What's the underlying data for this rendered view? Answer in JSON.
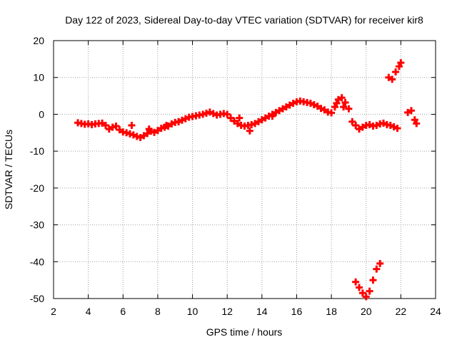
{
  "chart_data": {
    "type": "scatter",
    "title": "Day 122 of 2023, Sidereal Day-to-day VTEC variation (SDTVAR) for receiver kir8",
    "xlabel": "GPS time / hours",
    "ylabel": "SDTVAR / TECUs",
    "xlim": [
      2,
      24
    ],
    "ylim": [
      -50,
      20
    ],
    "xticks": [
      2,
      4,
      6,
      8,
      10,
      12,
      14,
      16,
      18,
      20,
      22,
      24
    ],
    "yticks": [
      -50,
      -40,
      -30,
      -20,
      -10,
      0,
      10,
      20
    ],
    "grid": true,
    "marker": "+",
    "series": [
      {
        "name": "SDTVAR",
        "color": "#ff0000",
        "x": [
          3.4,
          3.6,
          3.8,
          4.0,
          4.2,
          4.4,
          4.6,
          4.8,
          5.0,
          5.2,
          5.4,
          5.6,
          5.8,
          6.0,
          6.2,
          6.4,
          6.6,
          6.8,
          7.0,
          7.2,
          7.4,
          7.6,
          7.8,
          8.0,
          8.2,
          8.4,
          8.6,
          8.8,
          9.0,
          9.2,
          9.4,
          9.6,
          9.8,
          10.0,
          10.2,
          10.4,
          10.6,
          10.8,
          11.0,
          11.2,
          11.4,
          11.6,
          11.8,
          12.0,
          12.2,
          12.4,
          12.6,
          12.8,
          13.0,
          13.2,
          13.4,
          13.6,
          13.8,
          14.0,
          14.2,
          14.4,
          14.6,
          14.8,
          15.0,
          15.2,
          15.4,
          15.6,
          15.8,
          16.0,
          16.2,
          16.4,
          16.6,
          16.8,
          17.0,
          17.2,
          17.4,
          17.6,
          17.8,
          18.0,
          18.2,
          18.4,
          18.6,
          18.8,
          19.0,
          19.2,
          19.4,
          19.6,
          19.8,
          20.0,
          20.2,
          20.4,
          20.6,
          20.8,
          21.0,
          21.2,
          21.4,
          21.6,
          21.8,
          19.4,
          19.6,
          19.8,
          20.0,
          20.2,
          20.4,
          20.6,
          20.8,
          21.3,
          21.5,
          21.7,
          21.9,
          22.0,
          22.4,
          22.6,
          22.8,
          22.9,
          6.5,
          7.5,
          8.5,
          9.2,
          12.7,
          13.3,
          14.6,
          18.3,
          18.7
        ],
        "y": [
          -2.3,
          -2.5,
          -2.7,
          -2.6,
          -2.8,
          -2.6,
          -2.5,
          -2.4,
          -3.0,
          -4.0,
          -3.5,
          -3.2,
          -4.2,
          -4.8,
          -5.0,
          -5.3,
          -5.6,
          -6.0,
          -6.3,
          -5.8,
          -5.2,
          -4.6,
          -4.9,
          -4.4,
          -3.8,
          -3.5,
          -3.2,
          -2.6,
          -2.2,
          -2.0,
          -1.6,
          -1.2,
          -0.8,
          -0.6,
          -0.4,
          -0.2,
          0.0,
          0.3,
          0.6,
          0.2,
          -0.2,
          0.0,
          0.2,
          0.0,
          -1.0,
          -1.8,
          -2.5,
          -3.0,
          -3.2,
          -3.0,
          -2.8,
          -2.5,
          -2.0,
          -1.5,
          -1.0,
          -0.5,
          0.0,
          0.5,
          1.0,
          1.5,
          2.0,
          2.5,
          3.0,
          3.4,
          3.6,
          3.4,
          3.2,
          3.0,
          2.6,
          2.2,
          1.6,
          1.2,
          0.6,
          0.4,
          2.0,
          4.0,
          4.5,
          3.2,
          1.5,
          -2.0,
          -3.0,
          -4.0,
          -3.5,
          -3.0,
          -2.8,
          -3.2,
          -3.0,
          -2.6,
          -2.4,
          -2.8,
          -3.0,
          -3.4,
          -3.8,
          -45.5,
          -47.0,
          -48.5,
          -49.5,
          -48.0,
          -45.0,
          -42.0,
          -40.5,
          10.0,
          9.5,
          11.5,
          13.0,
          14.0,
          0.5,
          1.0,
          -1.5,
          -2.5,
          -3.0,
          -4.0,
          -3.0,
          -2.0,
          -1.0,
          -4.5,
          -0.5,
          3.0,
          2.0
        ]
      }
    ]
  }
}
